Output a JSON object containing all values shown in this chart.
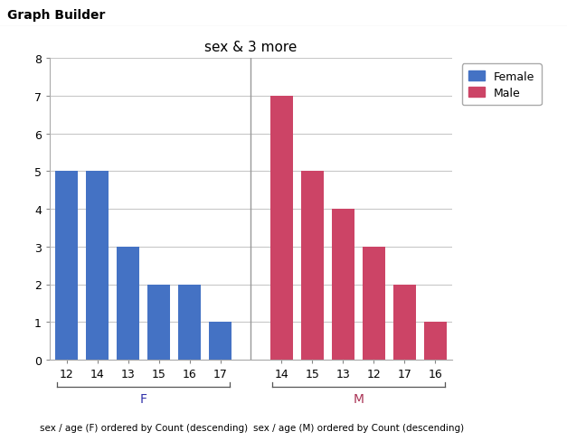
{
  "title": "sex & 3 more",
  "header": "Graph Builder",
  "female_ages": [
    "12",
    "14",
    "13",
    "15",
    "16",
    "17"
  ],
  "female_counts": [
    5,
    5,
    3,
    2,
    2,
    1
  ],
  "male_ages": [
    "14",
    "15",
    "13",
    "12",
    "17",
    "16"
  ],
  "male_counts": [
    7,
    5,
    4,
    3,
    2,
    1
  ],
  "female_color": "#4472C4",
  "male_color": "#CC4466",
  "ylim": [
    0,
    8
  ],
  "yticks": [
    0,
    1,
    2,
    3,
    4,
    5,
    6,
    7,
    8
  ],
  "female_label": "Female",
  "male_label": "Male",
  "female_xlabel": "F",
  "male_xlabel": "M",
  "female_sublabel": "sex / age (F) ordered by Count (descending)",
  "male_sublabel": "sex / age (M) ordered by Count (descending)",
  "bg_color": "#FFFFFF",
  "plot_bg_color": "#FFFFFF",
  "header_bg_color": "#E0E0E0",
  "grid_color": "#C8C8C8",
  "divider_color": "#999999",
  "bar_width": 0.72
}
